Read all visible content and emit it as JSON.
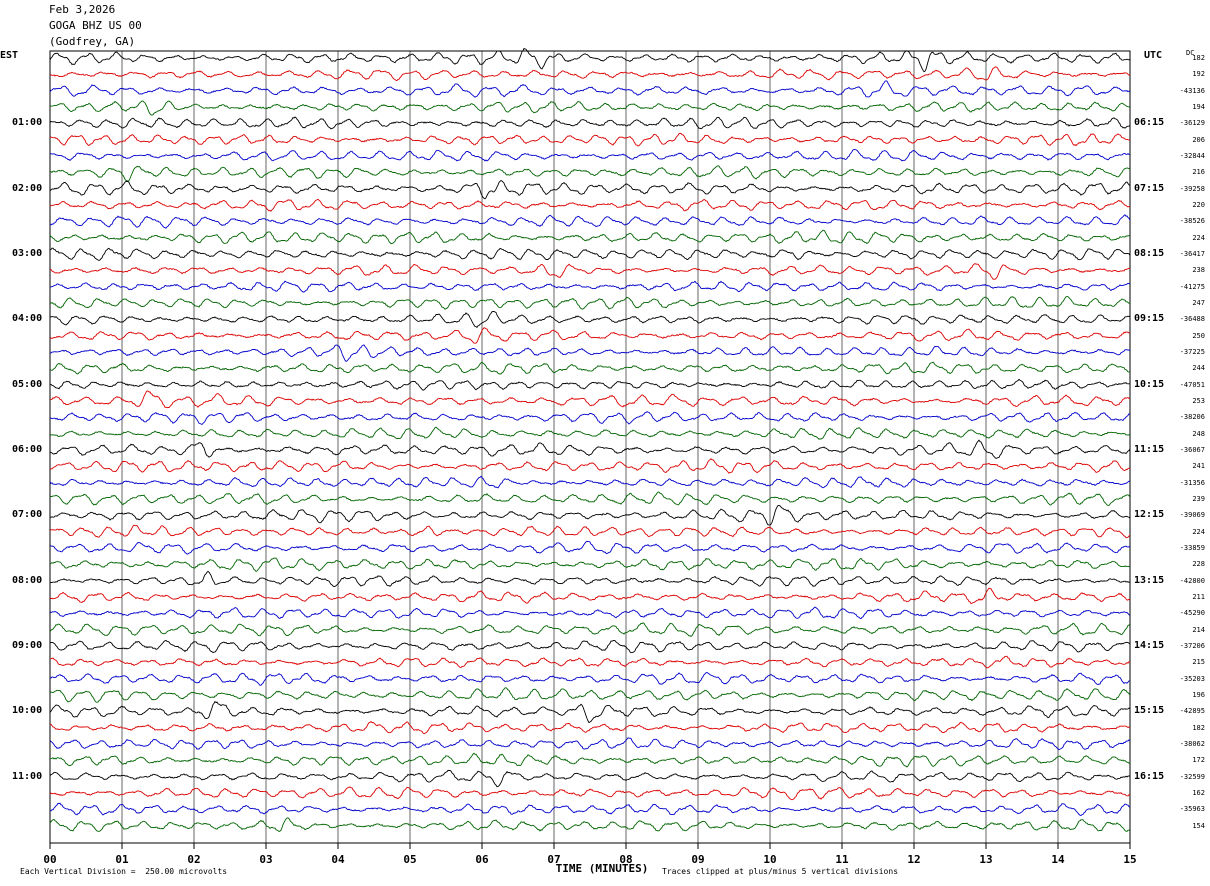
{
  "header": {
    "date": "Feb 3,2026",
    "station": "GOGA BHZ US 00",
    "location": "(Godfrey, GA)"
  },
  "left_label": "EST",
  "right_label": "UTC",
  "dc_label": "DC",
  "footer": {
    "scale_note": "Each Vertical Division =  250.00 microvolts",
    "xlabel": "TIME (MINUTES)",
    "clip_note": "Traces clipped at plus/minus 5 vertical divisions"
  },
  "colors": {
    "trace_cycle": [
      "#000000",
      "#dd0000",
      "#0000cc",
      "#006400"
    ],
    "grid": "#000000"
  },
  "chart_data": {
    "type": "line",
    "title": "GOGA BHZ US 00",
    "xlabel": "TIME (MINUTES)",
    "xlim": [
      0,
      15
    ],
    "x_ticks": [
      "00",
      "01",
      "02",
      "03",
      "04",
      "05",
      "06",
      "07",
      "08",
      "09",
      "10",
      "11",
      "12",
      "13",
      "14",
      "15"
    ],
    "rows_per_hour": 4,
    "hours_est": [
      "",
      "01:00",
      "02:00",
      "03:00",
      "04:00",
      "05:00",
      "06:00",
      "07:00",
      "08:00",
      "09:00",
      "10:00",
      "11:00"
    ],
    "hours_utc": [
      "",
      "06:15",
      "07:15",
      "08:15",
      "09:15",
      "10:15",
      "11:15",
      "12:15",
      "13:15",
      "14:15",
      "15:15",
      "16:15"
    ],
    "row_offsets": [
      "182",
      "192",
      "-43136",
      "194",
      "-36129",
      "206",
      "-32844",
      "216",
      "-39258",
      "220",
      "-38526",
      "224",
      "-36417",
      "238",
      "-41275",
      "247",
      "-36488",
      "250",
      "-37225",
      "244",
      "-47051",
      "253",
      "-38206",
      "248",
      "-36067",
      "241",
      "-31356",
      "239",
      "-39069",
      "224",
      "-33859",
      "228",
      "-42800",
      "211",
      "-45290",
      "214",
      "-37206",
      "215",
      "-35203",
      "196",
      "-42895",
      "182",
      "-38062",
      "172",
      "-32599",
      "162",
      "-35963",
      "154"
    ],
    "events": [
      {
        "row": 0,
        "minute": 12.2,
        "amp": 1.8
      },
      {
        "row": 0,
        "minute": 6.7,
        "amp": 1.6
      },
      {
        "row": 1,
        "minute": 13.0,
        "amp": 1.7
      },
      {
        "row": 2,
        "minute": 11.5,
        "amp": 1.5
      },
      {
        "row": 3,
        "minute": 1.5,
        "amp": 1.5
      },
      {
        "row": 7,
        "minute": 1.0,
        "amp": 1.4
      },
      {
        "row": 8,
        "minute": 6.1,
        "amp": 1.6
      },
      {
        "row": 12,
        "minute": 10.3,
        "amp": 1.7
      },
      {
        "row": 13,
        "minute": 7.0,
        "amp": 2.0
      },
      {
        "row": 13,
        "minute": 13.1,
        "amp": 1.8
      },
      {
        "row": 16,
        "minute": 6.0,
        "amp": 1.7
      },
      {
        "row": 17,
        "minute": 5.9,
        "amp": 2.0
      },
      {
        "row": 18,
        "minute": 4.2,
        "amp": 1.7
      },
      {
        "row": 21,
        "minute": 1.4,
        "amp": 1.8
      },
      {
        "row": 24,
        "minute": 2.1,
        "amp": 2.0
      },
      {
        "row": 24,
        "minute": 13.0,
        "amp": 1.6
      },
      {
        "row": 26,
        "minute": 6.1,
        "amp": 1.5
      },
      {
        "row": 28,
        "minute": 10.1,
        "amp": 1.8
      },
      {
        "row": 29,
        "minute": 5.2,
        "amp": 1.6
      },
      {
        "row": 32,
        "minute": 2.2,
        "amp": 1.6
      },
      {
        "row": 33,
        "minute": 13.0,
        "amp": 1.5
      },
      {
        "row": 40,
        "minute": 2.3,
        "amp": 2.2
      },
      {
        "row": 40,
        "minute": 7.5,
        "amp": 2.2
      },
      {
        "row": 44,
        "minute": 6.2,
        "amp": 1.8
      },
      {
        "row": 47,
        "minute": 3.2,
        "amp": 1.6
      }
    ]
  }
}
